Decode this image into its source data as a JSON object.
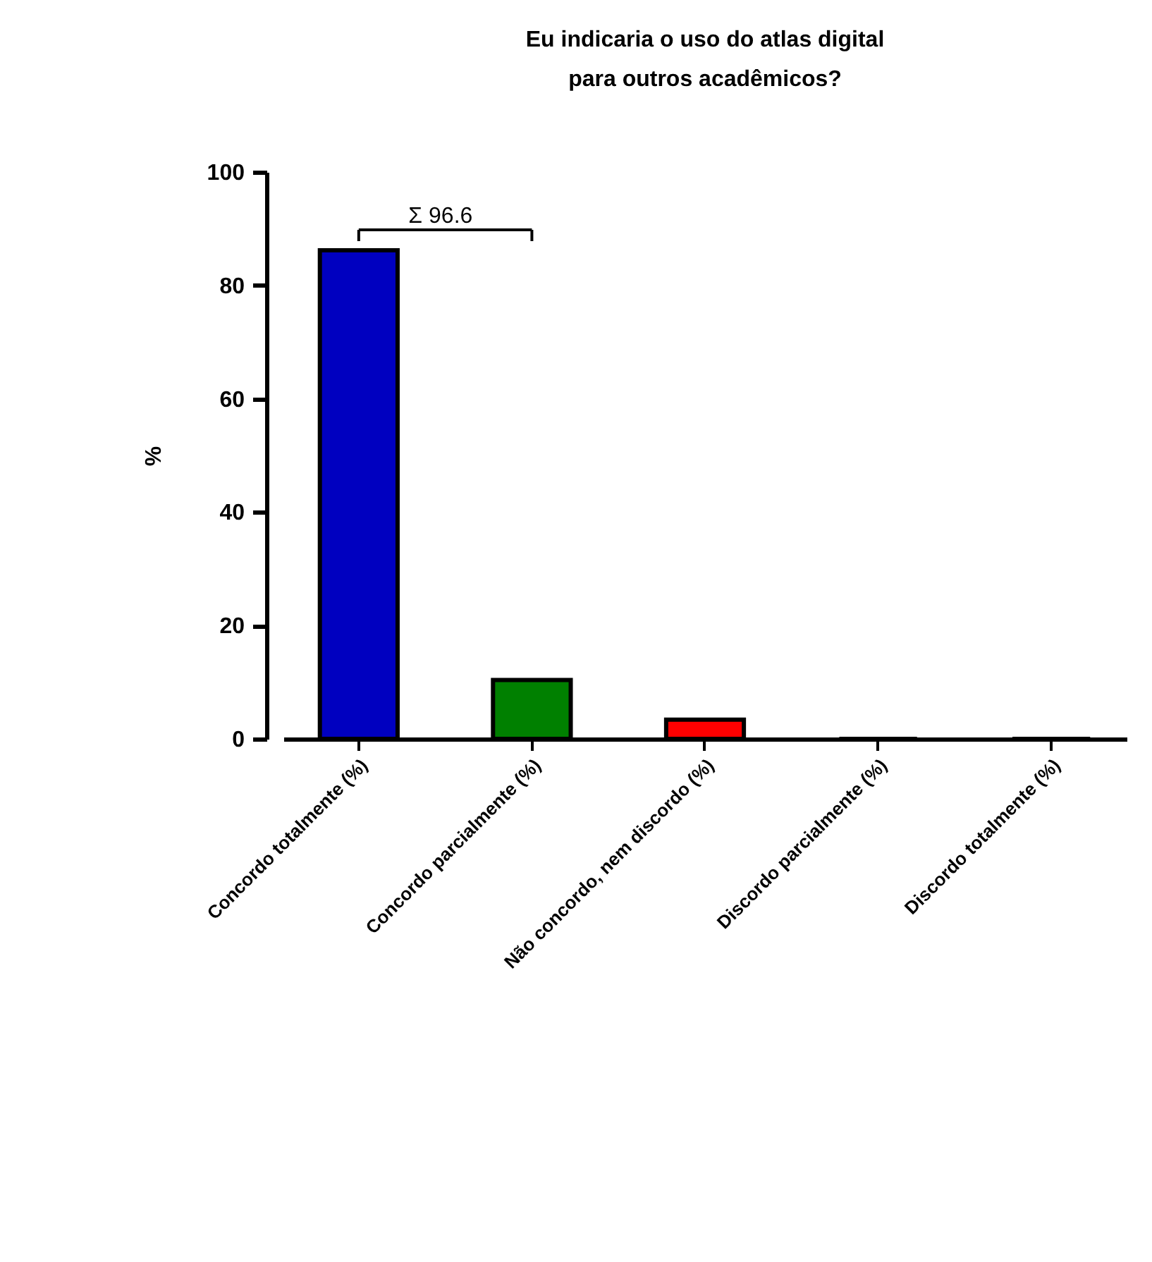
{
  "chart_data": {
    "type": "bar",
    "title": "Eu indicaria o uso do atlas digital para outros acadêmicos?",
    "ylabel": "%",
    "categories": [
      "Concordo totalmente (%)",
      "Concordo parcialmente (%)",
      "Não concordo, nem discordo (%)",
      "Discordo parcialmente (%)",
      "Discordo totalmente (%)"
    ],
    "values": [
      86.2,
      10.4,
      3.4,
      0,
      0
    ],
    "colors": [
      "#0000c0",
      "#008000",
      "#ff0000",
      null,
      null
    ],
    "ylim": [
      0,
      100
    ],
    "yticks": [
      0,
      20,
      40,
      60,
      80,
      100
    ],
    "grid": false,
    "annotations": [
      "Σ 96.6"
    ]
  }
}
